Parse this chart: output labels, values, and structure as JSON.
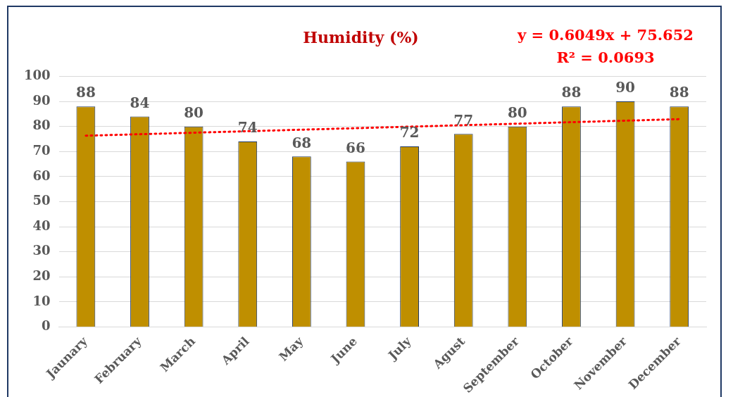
{
  "chart_data": {
    "type": "bar",
    "title": "Humidity (%)",
    "categories": [
      "Jaunary",
      "February",
      "March",
      "April",
      "May",
      "June",
      "July",
      "Agust",
      "September",
      "October",
      "November",
      "December"
    ],
    "series": [
      {
        "color": "#bf8f00",
        "values": [
          88,
          84,
          80,
          74,
          68,
          66,
          72,
          77,
          80,
          88,
          90,
          88
        ],
        "value_labels": [
          "88",
          "84",
          "80",
          "74",
          "68",
          "66",
          "72",
          "77",
          "80",
          "88",
          "90",
          "88"
        ]
      },
      {
        "type": "line",
        "color": "#ff0000",
        "x": [
          "Jaunary",
          "December"
        ],
        "values": [
          76.3,
          82.9
        ],
        "line_style": "dotted",
        "marker": "none"
      }
    ],
    "ylim": [
      0,
      100
    ],
    "yticks": [
      0,
      10,
      20,
      30,
      40,
      50,
      60,
      70,
      80,
      90,
      100
    ],
    "grid": "y",
    "legend": false,
    "annotations": [
      "y = 0.6049x + 75.652",
      "R² = 0.0693"
    ]
  }
}
